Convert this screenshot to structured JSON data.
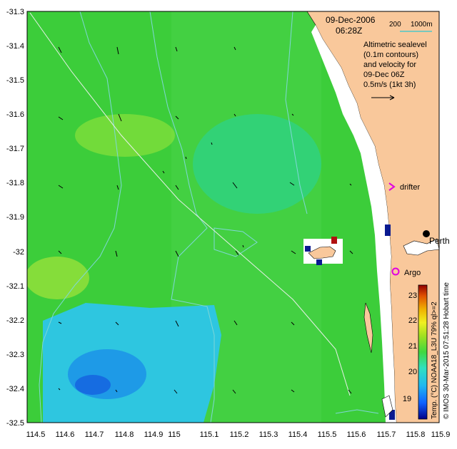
{
  "map": {
    "title_date": "09-Dec-2006",
    "title_time": "06:28Z",
    "isobath_legend": {
      "label_200": "200",
      "label_1000": "1000m"
    },
    "description_lines": [
      "Altimetric sealevel",
      "(0.1m contours)",
      "and velocity for",
      "09-Dec 06Z",
      "0.5m/s (1kt 3h)"
    ],
    "labels": {
      "drifter": "drifter",
      "perth": "Perth",
      "argo": "Argo"
    },
    "credit": "© IMOS 30-Mar-2015 07:51:28 Hobart time",
    "source_label": "Temp. (°C) NOAA18_L3U 79% ql>=2",
    "x_ticks": [
      "114.5",
      "114.6",
      "114.7",
      "114.8",
      "114.9",
      "115",
      "115.1",
      "115.2",
      "115.3",
      "115.4",
      "115.5",
      "115.6",
      "115.7",
      "115.8",
      "115.9"
    ],
    "y_ticks": [
      "-31.3",
      "-31.4",
      "-31.5",
      "-31.6",
      "-31.7",
      "-31.8",
      "-31.9",
      "-32",
      "-32.1",
      "-32.2",
      "-32.3",
      "-32.4",
      "-32.5"
    ],
    "xlim": [
      114.5,
      115.9
    ],
    "ylim": [
      -32.5,
      -31.3
    ],
    "colors": {
      "land": "#f9c89b",
      "isobath": "#7fd7d7",
      "argo": "#e000e0",
      "drifter": "#e000e0"
    }
  },
  "colorbar": {
    "ticks": [
      "19",
      "20",
      "21",
      "22",
      "23"
    ],
    "range": [
      18.3,
      23.5
    ]
  }
}
